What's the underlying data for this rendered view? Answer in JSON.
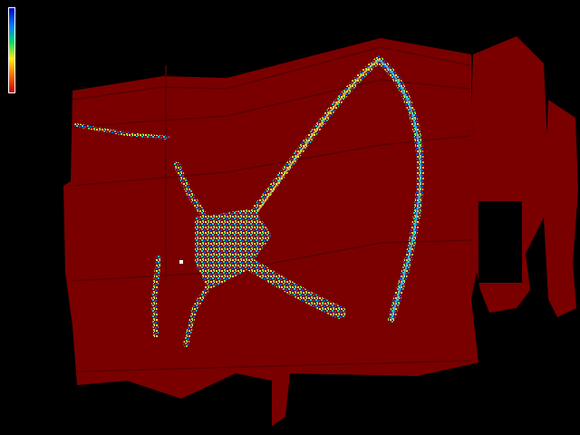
{
  "image": {
    "description_kind": "false-color depth map",
    "background_color": "#000000",
    "wall_color": "#7a0000",
    "line_color": "#5a0000"
  },
  "colorbar": {
    "gradient": [
      "#0000cc",
      "#0077ff",
      "#00dd66",
      "#ffee00",
      "#ff6600",
      "#cc0000"
    ]
  },
  "highlight_palette": [
    "#00ffff",
    "#33aaff",
    "#0033ff",
    "#66ff66",
    "#ffff33",
    "#ff9900",
    "#ffffff"
  ]
}
